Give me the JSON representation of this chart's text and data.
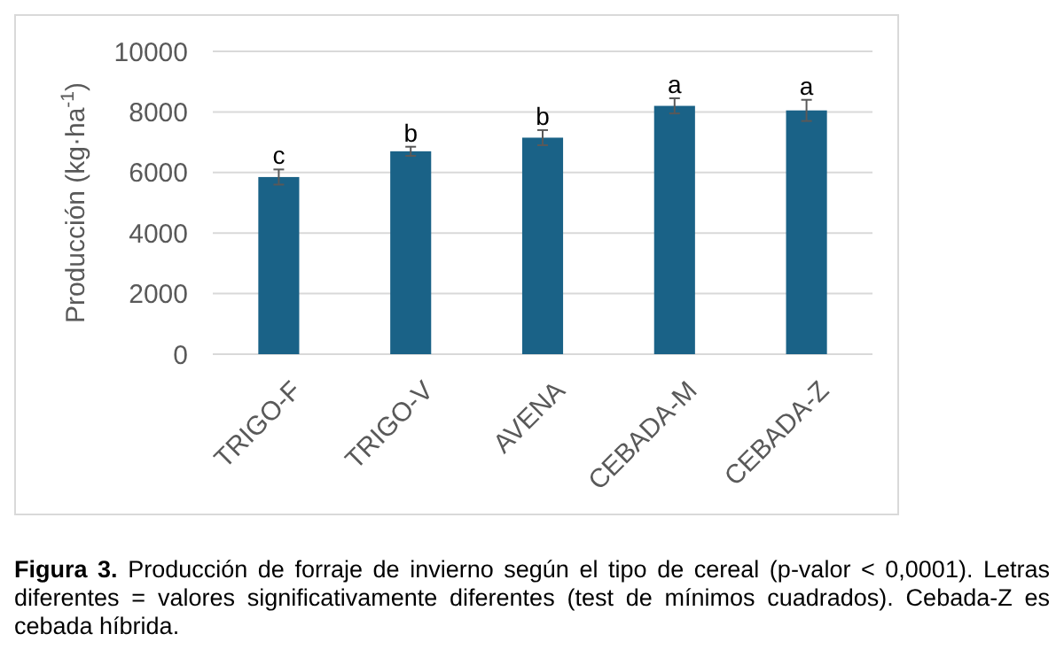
{
  "chart_data": {
    "type": "bar",
    "ylabel": "Producción  (kg·ha$^{-1}$)",
    "categories": [
      "TRIGO-F",
      "TRIGO-V",
      "AVENA",
      "CEBADA-M",
      "CEBADA-Z"
    ],
    "values": [
      5850,
      6700,
      7150,
      8200,
      8050
    ],
    "errors": [
      250,
      150,
      250,
      250,
      350
    ],
    "color": "#1a6287",
    "ylim": [
      0,
      10000
    ],
    "yticks": [
      0,
      2000,
      4000,
      6000,
      8000,
      10000
    ],
    "grid": "y",
    "annotations": [
      {
        "text": "c",
        "x": "TRIGO-F",
        "y": 5850
      },
      {
        "text": "b",
        "x": "TRIGO-V",
        "y": 6700
      },
      {
        "text": "b",
        "x": "AVENA",
        "y": 7150
      },
      {
        "text": "a",
        "x": "CEBADA-M",
        "y": 8200
      },
      {
        "text": "a",
        "x": "CEBADA-Z",
        "y": 8050
      },
      "Figura 3. Producción de forraje de invierno según el tipo de cereal (p-valor < 0,0001). Letras diferentes = valores significativamente diferentes (test de mínimos cuadrados). Cebada-Z es cebada híbrida."
    ]
  }
}
